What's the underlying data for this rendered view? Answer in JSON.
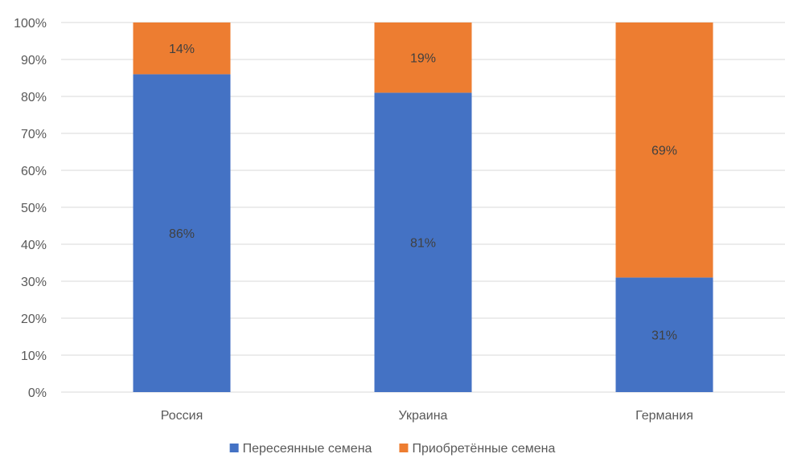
{
  "chart_data": {
    "type": "bar",
    "stacked": true,
    "categories": [
      "Россия",
      "Украина",
      "Германия"
    ],
    "series": [
      {
        "name": "Пересеянные семена",
        "values": [
          86,
          81,
          31
        ],
        "color": "#4472c4"
      },
      {
        "name": "Приобретённые семена",
        "values": [
          14,
          19,
          69
        ],
        "color": "#ed7d31"
      }
    ],
    "data_labels": [
      [
        "86%",
        "81%",
        "31%"
      ],
      [
        "14%",
        "19%",
        "69%"
      ]
    ],
    "y_ticks": [
      "0%",
      "10%",
      "20%",
      "30%",
      "40%",
      "50%",
      "60%",
      "70%",
      "80%",
      "90%",
      "100%"
    ],
    "ylim": [
      0,
      100
    ],
    "grid": true,
    "legend": "bottom-center"
  }
}
